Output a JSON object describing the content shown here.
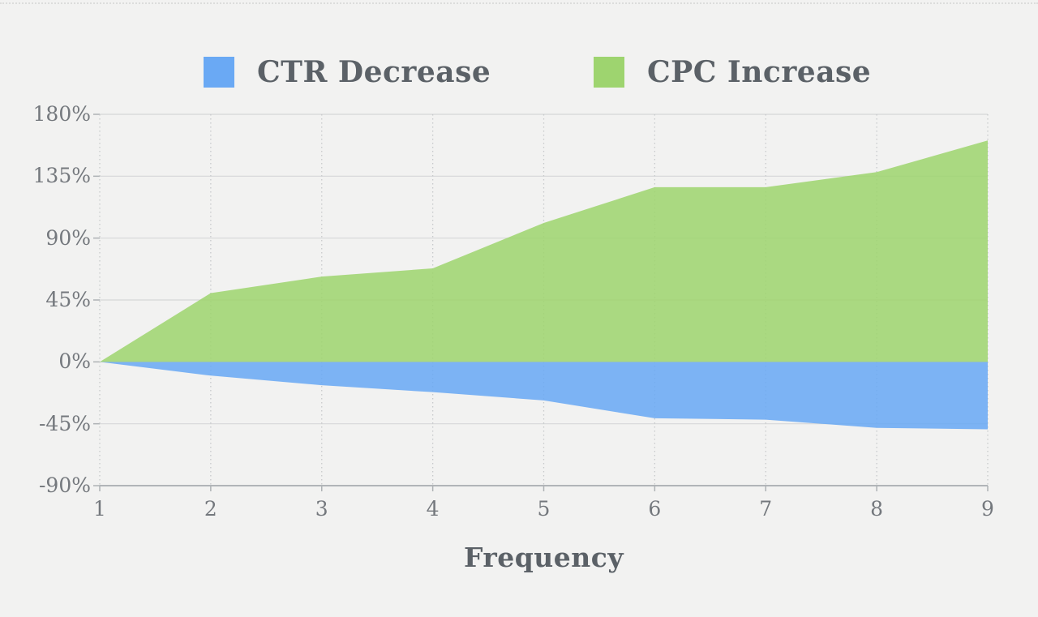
{
  "page": {
    "background": "#f2f2f1"
  },
  "chart_data": {
    "type": "area",
    "x": [
      1,
      2,
      3,
      4,
      5,
      6,
      7,
      8,
      9
    ],
    "series": [
      {
        "name": "CTR Decrease",
        "color": "#6aa9f4",
        "values": [
          0,
          -10,
          -17,
          -22,
          -28,
          -41,
          -42,
          -48,
          -49
        ]
      },
      {
        "name": "CPC Increase",
        "color": "#9ed46f",
        "values": [
          0,
          50,
          62,
          68,
          101,
          127,
          127,
          138,
          161
        ]
      }
    ],
    "title": "",
    "xlabel": "Frequency",
    "ylabel": "",
    "ylim": [
      -90,
      180
    ],
    "y_ticks": [
      {
        "label": "180%",
        "value": 180
      },
      {
        "label": "135%",
        "value": 135
      },
      {
        "label": "90%",
        "value": 90
      },
      {
        "label": "45%",
        "value": 45
      },
      {
        "label": "0%",
        "value": 0
      },
      {
        "label": "-45%",
        "value": -45
      },
      {
        "label": "-90%",
        "value": -90
      }
    ],
    "x_tick_labels": [
      "1",
      "2",
      "3",
      "4",
      "5",
      "6",
      "7",
      "8",
      "9"
    ],
    "grid": true,
    "legend_position": "top",
    "grid_colors": {
      "h_grid": "#d6d7d8",
      "v_grid_dotted": "#c7c9cb",
      "axis_line": "#b1b5b8",
      "tick": "#aeb2b5"
    }
  }
}
